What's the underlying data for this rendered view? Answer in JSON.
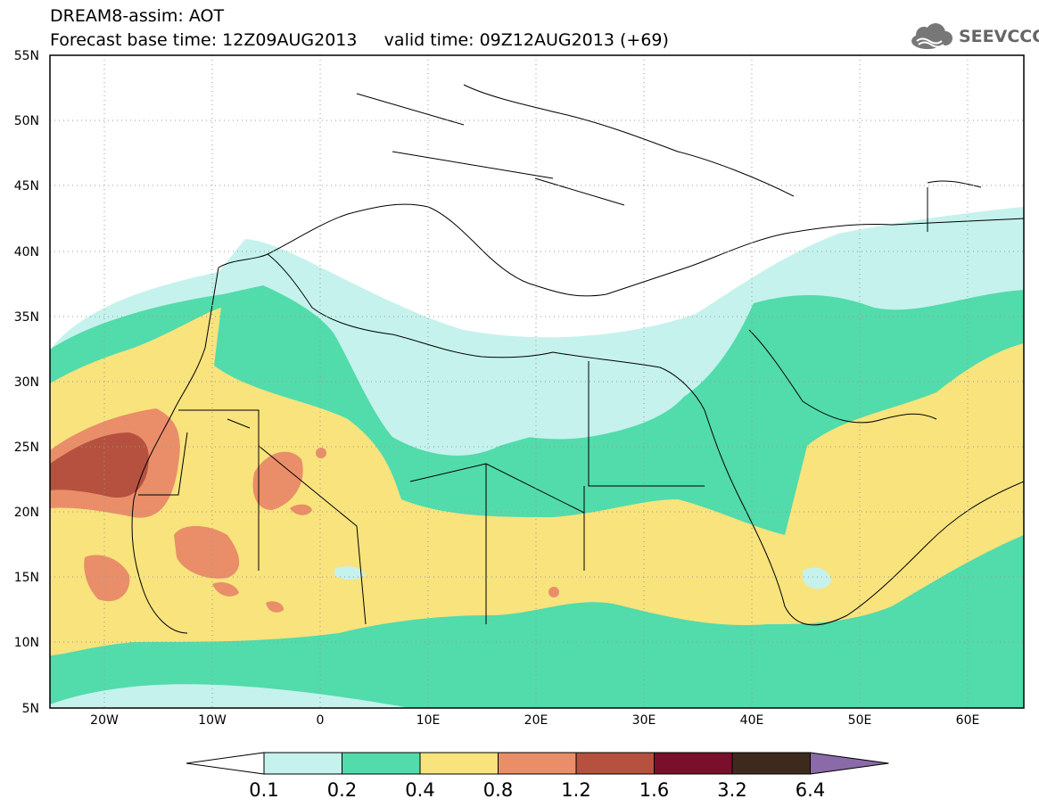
{
  "title": {
    "line1": "DREAM8-assim: AOT",
    "line2": "Forecast base time: 12Z09AUG2013     valid time: 09Z12AUG2013 (+69)"
  },
  "logo": {
    "text": "SEEVCCC"
  },
  "map": {
    "lon_range": [
      -25,
      65
    ],
    "lat_range": [
      5,
      55
    ],
    "lat_ticks": [
      "5N",
      "10N",
      "15N",
      "20N",
      "25N",
      "30N",
      "35N",
      "40N",
      "45N",
      "50N",
      "55N"
    ],
    "lon_ticks": [
      "20W",
      "10W",
      "0",
      "10E",
      "20E",
      "30E",
      "40E",
      "50E",
      "60E"
    ],
    "grid": "dotted"
  },
  "colorbar": {
    "levels": [
      "0.1",
      "0.2",
      "0.4",
      "0.8",
      "1.2",
      "1.6",
      "3.2",
      "6.4"
    ],
    "colors": [
      "#ffffff",
      "#c5f2ec",
      "#52dbab",
      "#f8e37d",
      "#e98e69",
      "#b5513e",
      "#7a0f2c",
      "#3e2a1c",
      "#8a6aa8"
    ]
  }
}
